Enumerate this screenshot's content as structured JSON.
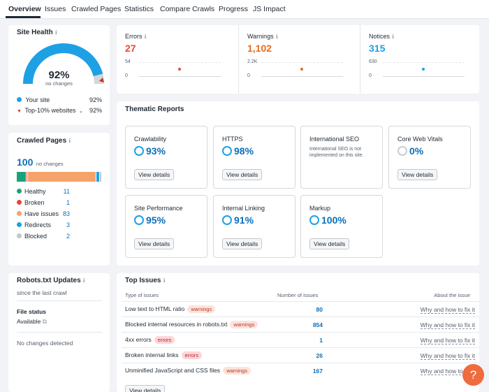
{
  "tabs": [
    "Overview",
    "Issues",
    "Crawled Pages",
    "Statistics",
    "Compare Crawls",
    "Progress",
    "JS Impact"
  ],
  "site_health": {
    "title": "Site Health",
    "score": "92%",
    "score_value": 92,
    "score_sub": "no changes",
    "legend": [
      {
        "label": "Your site",
        "value": "92%",
        "color": "#1ea0e5"
      },
      {
        "label": "Top-10% websites",
        "value": "92%",
        "color": "#c0392b"
      }
    ]
  },
  "crawled_pages": {
    "title": "Crawled Pages",
    "total": "100",
    "total_sub": "no changes",
    "bar": [
      {
        "value": 11,
        "color": "#1aa37a"
      },
      {
        "value": 1,
        "color": "#e8453c"
      },
      {
        "value": 83,
        "color": "#f5a36a"
      },
      {
        "value": 3,
        "color": "#1ea0e5"
      },
      {
        "value": 2,
        "color": "#c4c7cc"
      }
    ],
    "items": [
      {
        "label": "Healthy",
        "value": "11",
        "color": "#1aa37a"
      },
      {
        "label": "Broken",
        "value": "1",
        "color": "#e8453c"
      },
      {
        "label": "Have issues",
        "value": "83",
        "color": "#f5a36a"
      },
      {
        "label": "Redirects",
        "value": "3",
        "color": "#1ea0e5"
      },
      {
        "label": "Blocked",
        "value": "2",
        "color": "#c4c7cc"
      }
    ]
  },
  "robots": {
    "title": "Robots.txt Updates",
    "subtitle": "since the last crawl",
    "file_status_label": "File status",
    "file_status": "Available",
    "changes": "No changes detected"
  },
  "metrics": [
    {
      "label": "Errors",
      "value": "27",
      "ymax": "54",
      "ymin": "0",
      "color": "#e8453c"
    },
    {
      "label": "Warnings",
      "value": "1,102",
      "ymax": "2.2K",
      "ymin": "0",
      "color": "#e46c1e"
    },
    {
      "label": "Notices",
      "value": "315",
      "ymax": "630",
      "ymin": "0",
      "color": "#1ea0e5"
    }
  ],
  "thematic": {
    "title": "Thematic Reports",
    "view_label": "View details",
    "cards": [
      {
        "name": "Crawlability",
        "pct": "93%",
        "value": 93
      },
      {
        "name": "HTTPS",
        "pct": "98%",
        "value": 98
      },
      {
        "name": "International SEO",
        "note": "International SEO is not implemented on this site."
      },
      {
        "name": "Core Web Vitals",
        "pct": "0%",
        "value": 0
      },
      {
        "name": "Site Performance",
        "pct": "95%",
        "value": 95
      },
      {
        "name": "Internal Linking",
        "pct": "91%",
        "value": 91
      },
      {
        "name": "Markup",
        "pct": "100%",
        "value": 100
      }
    ]
  },
  "top_issues": {
    "title": "Top Issues",
    "headers": [
      "Type of issues",
      "Number of issues",
      "About the issue"
    ],
    "link_label": "Why and how to fix it",
    "view_label": "View details",
    "rows": [
      {
        "issue": "Low text to HTML ratio",
        "badge": "warnings",
        "count": "80"
      },
      {
        "issue": "Blocked internal resources in robots.txt",
        "badge": "warnings",
        "count": "854"
      },
      {
        "issue": "4xx errors",
        "badge": "errors",
        "count": "1"
      },
      {
        "issue": "Broken internal links",
        "badge": "errors",
        "count": "26"
      },
      {
        "issue": "Unminified JavaScript and CSS files",
        "badge": "warnings",
        "count": "167"
      }
    ]
  },
  "help_button": "?"
}
